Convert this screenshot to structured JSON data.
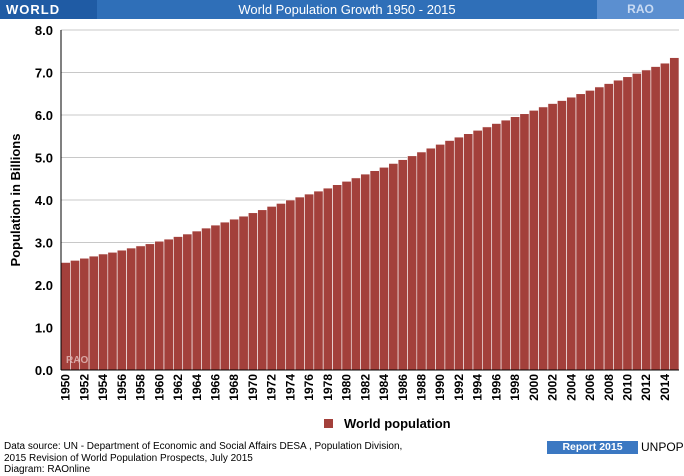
{
  "header": {
    "left_label": "WORLD",
    "title": "World Population Growth 1950 - 2015",
    "right_label": "RAO"
  },
  "chart_data": {
    "type": "bar",
    "title": "World Population Growth 1950 - 2015",
    "ylabel": "Population in Billions",
    "xlabel": "",
    "ylim": [
      0,
      8
    ],
    "yticks": [
      "0.0",
      "1.0",
      "2.0",
      "3.0",
      "4.0",
      "5.0",
      "6.0",
      "7.0",
      "8.0"
    ],
    "grid": true,
    "legend_position": "bottom",
    "watermark": "RAO",
    "colors": {
      "bar": "#a3403b",
      "bar_edge": "#ffffff",
      "grid": "#c8c8c8"
    },
    "categories": [
      1950,
      1951,
      1952,
      1953,
      1954,
      1955,
      1956,
      1957,
      1958,
      1959,
      1960,
      1961,
      1962,
      1963,
      1964,
      1965,
      1966,
      1967,
      1968,
      1969,
      1970,
      1971,
      1972,
      1973,
      1974,
      1975,
      1976,
      1977,
      1978,
      1979,
      1980,
      1981,
      1982,
      1983,
      1984,
      1985,
      1986,
      1987,
      1988,
      1989,
      1990,
      1991,
      1992,
      1993,
      1994,
      1995,
      1996,
      1997,
      1998,
      1999,
      2000,
      2001,
      2002,
      2003,
      2004,
      2005,
      2006,
      2007,
      2008,
      2009,
      2010,
      2011,
      2012,
      2013,
      2014,
      2015
    ],
    "xtick_labels": [
      "1950",
      "1952",
      "1954",
      "1956",
      "1958",
      "1960",
      "1962",
      "1964",
      "1966",
      "1968",
      "1970",
      "1972",
      "1974",
      "1976",
      "1978",
      "1980",
      "1982",
      "1984",
      "1986",
      "1988",
      "1990",
      "1992",
      "1994",
      "1996",
      "1998",
      "2000",
      "2002",
      "2004",
      "2006",
      "2008",
      "2010",
      "2012",
      "2014"
    ],
    "series": [
      {
        "name": "World population",
        "values": [
          2.53,
          2.58,
          2.63,
          2.68,
          2.73,
          2.77,
          2.82,
          2.87,
          2.92,
          2.97,
          3.03,
          3.08,
          3.14,
          3.2,
          3.27,
          3.34,
          3.41,
          3.48,
          3.55,
          3.62,
          3.7,
          3.77,
          3.85,
          3.92,
          4.0,
          4.07,
          4.14,
          4.21,
          4.28,
          4.36,
          4.44,
          4.52,
          4.61,
          4.69,
          4.77,
          4.86,
          4.95,
          5.04,
          5.13,
          5.22,
          5.31,
          5.4,
          5.48,
          5.56,
          5.64,
          5.72,
          5.8,
          5.88,
          5.96,
          6.03,
          6.11,
          6.19,
          6.27,
          6.34,
          6.42,
          6.5,
          6.58,
          6.66,
          6.74,
          6.82,
          6.9,
          6.98,
          7.06,
          7.14,
          7.22,
          7.35
        ]
      }
    ]
  },
  "footer": {
    "source_line1": "Data source: UN -  Department of Economic and Social Affairs DESA , Population Division,",
    "source_line2": "2015 Revision of World Population Prospects, July 2015",
    "source_line3": "Diagram: RAOnline",
    "report_label": "Report 2015",
    "org_label": "UNPOP"
  }
}
